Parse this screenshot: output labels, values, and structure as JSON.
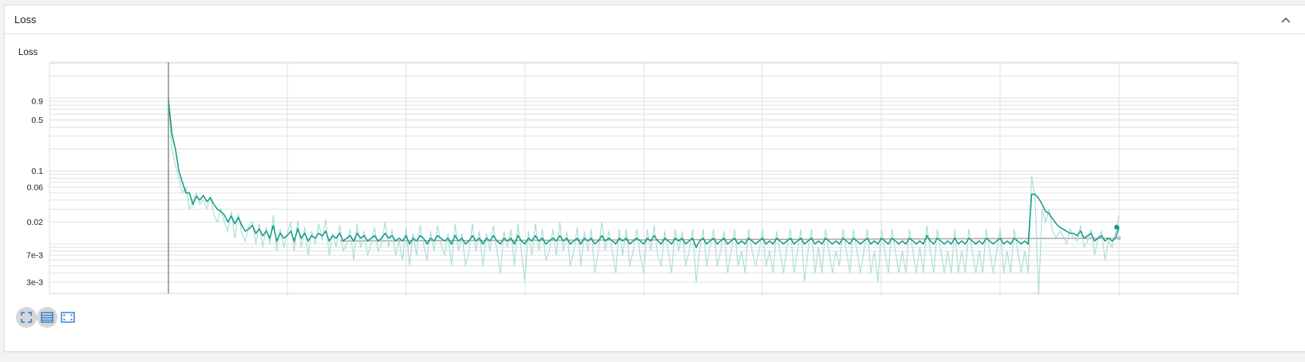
{
  "card": {
    "title": "Loss"
  },
  "icons": {
    "collapse": "chevron-up-icon",
    "toolbar": [
      "fullscreen-icon",
      "list-icon",
      "fit-domain-icon"
    ]
  },
  "colors": {
    "series": "#0f9a84",
    "raw": "#a8ddd3",
    "reference": "#a8a8a8",
    "icon_blue": "#2a7dd1",
    "grid": "#e0e0e0"
  },
  "chart_data": {
    "type": "line",
    "title": "Loss",
    "xlabel": "",
    "ylabel": "",
    "yscale": "log",
    "ylim": [
      0.0021,
      3.1
    ],
    "ytick_labels": [
      "3e-3",
      "7e-3",
      "0.02",
      "0.06",
      "0.1",
      "0.5",
      "0.9"
    ],
    "ytick_values": [
      0.003,
      0.007,
      0.02,
      0.06,
      0.1,
      0.5,
      0.9
    ],
    "grid": true,
    "legend": "none",
    "series": [
      {
        "role": "smoothed",
        "values": [
          0.95,
          0.32,
          0.2,
          0.1,
          0.07,
          0.05,
          0.05,
          0.035,
          0.045,
          0.04,
          0.046,
          0.038,
          0.043,
          0.035,
          0.03,
          0.028,
          0.025,
          0.02,
          0.024,
          0.019,
          0.023,
          0.018,
          0.015,
          0.016,
          0.018,
          0.014,
          0.016,
          0.013,
          0.015,
          0.012,
          0.018,
          0.011,
          0.014,
          0.012,
          0.013,
          0.015,
          0.011,
          0.016,
          0.012,
          0.014,
          0.011,
          0.013,
          0.012,
          0.014,
          0.013,
          0.015,
          0.011,
          0.013,
          0.012,
          0.014,
          0.011,
          0.012,
          0.013,
          0.011,
          0.014,
          0.012,
          0.013,
          0.011,
          0.012,
          0.013,
          0.011,
          0.012,
          0.014,
          0.012,
          0.013,
          0.011,
          0.012,
          0.011,
          0.013,
          0.01,
          0.012,
          0.011,
          0.013,
          0.012,
          0.01,
          0.012,
          0.011,
          0.013,
          0.012,
          0.011,
          0.012,
          0.01,
          0.013,
          0.011,
          0.012,
          0.01,
          0.011,
          0.013,
          0.011,
          0.012,
          0.01,
          0.012,
          0.011,
          0.013,
          0.011,
          0.01,
          0.012,
          0.011,
          0.012,
          0.01,
          0.013,
          0.011,
          0.01,
          0.012,
          0.011,
          0.013,
          0.011,
          0.012,
          0.01,
          0.011,
          0.012,
          0.011,
          0.013,
          0.011,
          0.012,
          0.01,
          0.011,
          0.012,
          0.01,
          0.012,
          0.011,
          0.012,
          0.01,
          0.011,
          0.013,
          0.011,
          0.012,
          0.011,
          0.01,
          0.012,
          0.011,
          0.012,
          0.01,
          0.011,
          0.012,
          0.011,
          0.01,
          0.012,
          0.011,
          0.013,
          0.011,
          0.01,
          0.012,
          0.011,
          0.01,
          0.012,
          0.011,
          0.012,
          0.01,
          0.011,
          0.012,
          0.009,
          0.011,
          0.012,
          0.01,
          0.011,
          0.012,
          0.01,
          0.011,
          0.012,
          0.01,
          0.011,
          0.012,
          0.01,
          0.011,
          0.01,
          0.012,
          0.011,
          0.01,
          0.011,
          0.012,
          0.01,
          0.011,
          0.01,
          0.012,
          0.011,
          0.01,
          0.011,
          0.012,
          0.01,
          0.011,
          0.012,
          0.01,
          0.011,
          0.012,
          0.01,
          0.011,
          0.01,
          0.012,
          0.011,
          0.01,
          0.011,
          0.01,
          0.012,
          0.011,
          0.01,
          0.012,
          0.011,
          0.01,
          0.011,
          0.012,
          0.01,
          0.011,
          0.01,
          0.012,
          0.011,
          0.01,
          0.012,
          0.011,
          0.01,
          0.011,
          0.01,
          0.012,
          0.011,
          0.01,
          0.011,
          0.01,
          0.013,
          0.011,
          0.01,
          0.012,
          0.011,
          0.01,
          0.011,
          0.01,
          0.012,
          0.01,
          0.011,
          0.01,
          0.012,
          0.011,
          0.01,
          0.011,
          0.01,
          0.012,
          0.011,
          0.01,
          0.011,
          0.012,
          0.01,
          0.011,
          0.01,
          0.012,
          0.011,
          0.01,
          0.011,
          0.01,
          0.048,
          0.048,
          0.042,
          0.035,
          0.028,
          0.026,
          0.022,
          0.019,
          0.017,
          0.016,
          0.015,
          0.014,
          0.014,
          0.013,
          0.015,
          0.012,
          0.013,
          0.014,
          0.011,
          0.012,
          0.013,
          0.011,
          0.012,
          0.011,
          0.012,
          0.017
        ]
      },
      {
        "role": "raw",
        "values": [
          0.9,
          0.2,
          0.12,
          0.08,
          0.05,
          0.06,
          0.03,
          0.04,
          0.05,
          0.035,
          0.04,
          0.03,
          0.045,
          0.025,
          0.02,
          0.03,
          0.02,
          0.015,
          0.028,
          0.012,
          0.026,
          0.014,
          0.011,
          0.018,
          0.02,
          0.01,
          0.019,
          0.009,
          0.017,
          0.01,
          0.025,
          0.008,
          0.016,
          0.009,
          0.014,
          0.02,
          0.008,
          0.021,
          0.009,
          0.017,
          0.007,
          0.015,
          0.01,
          0.019,
          0.011,
          0.022,
          0.007,
          0.014,
          0.009,
          0.018,
          0.008,
          0.01,
          0.016,
          0.006,
          0.019,
          0.009,
          0.015,
          0.007,
          0.01,
          0.017,
          0.008,
          0.01,
          0.02,
          0.009,
          0.016,
          0.007,
          0.011,
          0.006,
          0.017,
          0.005,
          0.014,
          0.007,
          0.018,
          0.01,
          0.006,
          0.015,
          0.008,
          0.018,
          0.01,
          0.007,
          0.014,
          0.005,
          0.019,
          0.008,
          0.014,
          0.005,
          0.008,
          0.019,
          0.008,
          0.015,
          0.005,
          0.014,
          0.008,
          0.018,
          0.008,
          0.004,
          0.015,
          0.009,
          0.016,
          0.005,
          0.019,
          0.008,
          0.003,
          0.015,
          0.007,
          0.019,
          0.008,
          0.016,
          0.006,
          0.008,
          0.016,
          0.007,
          0.02,
          0.008,
          0.015,
          0.005,
          0.008,
          0.017,
          0.005,
          0.015,
          0.008,
          0.016,
          0.004,
          0.008,
          0.02,
          0.008,
          0.015,
          0.008,
          0.004,
          0.016,
          0.007,
          0.016,
          0.005,
          0.008,
          0.016,
          0.007,
          0.004,
          0.016,
          0.008,
          0.018,
          0.007,
          0.005,
          0.015,
          0.008,
          0.004,
          0.016,
          0.008,
          0.015,
          0.005,
          0.008,
          0.016,
          0.003,
          0.008,
          0.016,
          0.005,
          0.009,
          0.016,
          0.005,
          0.008,
          0.015,
          0.004,
          0.008,
          0.016,
          0.005,
          0.008,
          0.004,
          0.016,
          0.008,
          0.005,
          0.008,
          0.016,
          0.005,
          0.008,
          0.004,
          0.015,
          0.008,
          0.004,
          0.009,
          0.016,
          0.004,
          0.008,
          0.016,
          0.003,
          0.008,
          0.016,
          0.004,
          0.009,
          0.004,
          0.016,
          0.008,
          0.004,
          0.008,
          0.005,
          0.016,
          0.008,
          0.004,
          0.016,
          0.008,
          0.004,
          0.008,
          0.016,
          0.004,
          0.008,
          0.003,
          0.016,
          0.008,
          0.004,
          0.016,
          0.008,
          0.004,
          0.008,
          0.004,
          0.016,
          0.008,
          0.004,
          0.009,
          0.004,
          0.018,
          0.008,
          0.004,
          0.016,
          0.008,
          0.004,
          0.008,
          0.004,
          0.016,
          0.004,
          0.008,
          0.004,
          0.016,
          0.008,
          0.004,
          0.008,
          0.004,
          0.016,
          0.008,
          0.004,
          0.008,
          0.016,
          0.004,
          0.008,
          0.004,
          0.016,
          0.008,
          0.004,
          0.008,
          0.004,
          0.085,
          0.04,
          0.002,
          0.03,
          0.02,
          0.03,
          0.015,
          0.012,
          0.015,
          0.013,
          0.01,
          0.016,
          0.012,
          0.011,
          0.018,
          0.009,
          0.011,
          0.016,
          0.007,
          0.012,
          0.015,
          0.006,
          0.011,
          0.009,
          0.014,
          0.025
        ]
      },
      {
        "role": "reference",
        "values": [
          0.011,
          0.012
        ]
      }
    ]
  }
}
